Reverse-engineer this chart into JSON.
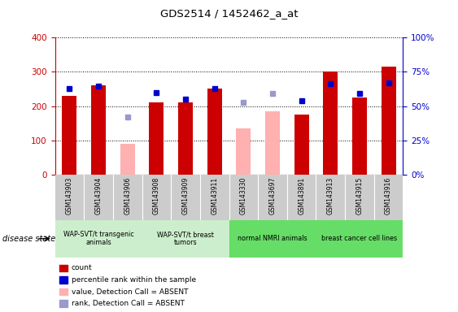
{
  "title": "GDS2514 / 1452462_a_at",
  "samples": [
    "GSM143903",
    "GSM143904",
    "GSM143906",
    "GSM143908",
    "GSM143909",
    "GSM143911",
    "GSM143330",
    "GSM143697",
    "GSM143891",
    "GSM143913",
    "GSM143915",
    "GSM143916"
  ],
  "count_values": [
    230,
    260,
    null,
    210,
    210,
    250,
    null,
    null,
    175,
    300,
    225,
    315
  ],
  "count_absent": [
    null,
    null,
    90,
    null,
    null,
    null,
    135,
    185,
    null,
    null,
    null,
    null
  ],
  "rank_values": [
    250,
    258,
    null,
    240,
    220,
    252,
    null,
    null,
    215,
    265,
    238,
    268
  ],
  "rank_absent": [
    null,
    null,
    167,
    null,
    null,
    null,
    210,
    237,
    null,
    null,
    null,
    null
  ],
  "ylim_left": [
    0,
    400
  ],
  "ylim_right": [
    0,
    100
  ],
  "groups": [
    {
      "label": "WAP-SVT/t transgenic\nanimals",
      "start": 0,
      "end": 2,
      "color": "#cceecc"
    },
    {
      "label": "WAP-SVT/t breast\ntumors",
      "start": 3,
      "end": 5,
      "color": "#cceecc"
    },
    {
      "label": "normal NMRI animals",
      "start": 6,
      "end": 8,
      "color": "#66dd66"
    },
    {
      "label": "breast cancer cell lines",
      "start": 9,
      "end": 11,
      "color": "#66dd66"
    }
  ],
  "count_color": "#cc0000",
  "count_absent_color": "#ffb0b0",
  "rank_color": "#0000cc",
  "rank_absent_color": "#9999cc",
  "xtick_bg": "#cccccc",
  "left_axis_color": "#cc0000",
  "right_axis_color": "#0000cc",
  "grid_color": "#000000",
  "plot_bg": "#ffffff"
}
